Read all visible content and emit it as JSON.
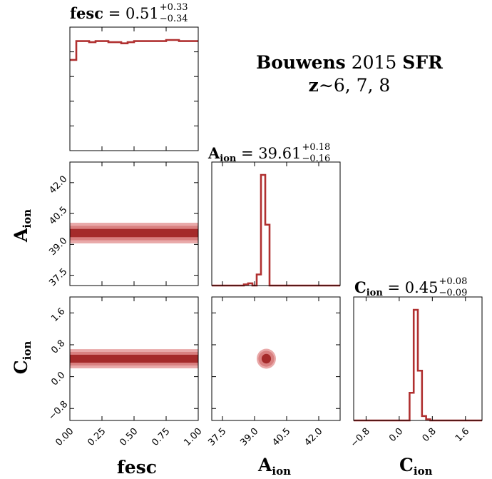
{
  "figure": {
    "title_line1_bold": "Bouwens",
    "title_line1_rest": " 2015 ",
    "title_line1_bold2": "SFR",
    "title_line2_bold": "z",
    "title_line2_rest": "∼6, 7, 8"
  },
  "headers": {
    "fesc": {
      "name": "fesc",
      "eq": " = 0.51",
      "plus": "+0.33",
      "minus": "−0.34"
    },
    "aion": {
      "name": "A",
      "sub": "ion",
      "eq": " = 39.61",
      "plus": "+0.18",
      "minus": "−0.16"
    },
    "cion": {
      "name": "C",
      "sub": "ion",
      "eq": " = 0.45",
      "plus": "+0.08",
      "minus": "−0.09"
    }
  },
  "labels": {
    "x_fesc": "fesc",
    "x_aion_main": "A",
    "x_aion_sub": "ion",
    "x_cion_main": "C",
    "x_cion_sub": "ion",
    "y_aion_main": "A",
    "y_aion_sub": "ion",
    "y_cion_main": "C",
    "y_cion_sub": "ion"
  },
  "colors": {
    "line": "#b03030",
    "fill_dark": "#a52a2a",
    "fill_light": "#e9a9a9",
    "fill_mid": "#d98080"
  },
  "chart_data": {
    "type": "corner",
    "parameters": [
      "fesc",
      "A_ion",
      "C_ion"
    ],
    "axes": {
      "fesc": {
        "range": [
          0.0,
          1.0
        ],
        "ticks": [
          "0.00",
          "0.25",
          "0.50",
          "0.75",
          "1.00"
        ],
        "tick_values": [
          0,
          0.25,
          0.5,
          0.75,
          1.0
        ]
      },
      "A_ion": {
        "range": [
          37.0,
          43.0
        ],
        "ticks": [
          "37.5",
          "39.0",
          "40.5",
          "42.0"
        ],
        "tick_values": [
          37.5,
          39.0,
          40.5,
          42.0
        ]
      },
      "C_ion": {
        "range": [
          -1.1,
          2.0
        ],
        "ticks": [
          "−0.8",
          "0.0",
          "0.8",
          "1.6"
        ],
        "tick_values": [
          -0.8,
          0.0,
          0.8,
          1.6
        ]
      }
    },
    "histograms": {
      "fesc": {
        "bin_edges": [
          0.0,
          0.05,
          0.1,
          0.15,
          0.2,
          0.25,
          0.3,
          0.35,
          0.4,
          0.45,
          0.5,
          0.55,
          0.6,
          0.65,
          0.7,
          0.75,
          0.8,
          0.85,
          0.9,
          0.95,
          1.0
        ],
        "counts": [
          0.82,
          0.99,
          0.99,
          0.98,
          0.99,
          0.99,
          0.98,
          0.98,
          0.97,
          0.98,
          0.99,
          0.99,
          0.99,
          0.99,
          0.99,
          1.0,
          1.0,
          0.99,
          0.99,
          0.99
        ]
      },
      "A_ion": {
        "bin_edges": [
          37.0,
          38.5,
          38.7,
          38.9,
          39.1,
          39.3,
          39.5,
          39.7,
          39.9,
          43.0
        ],
        "counts": [
          0.0,
          0.01,
          0.02,
          0.0,
          0.1,
          1.0,
          0.55,
          0.0,
          0.0
        ]
      },
      "C_ion": {
        "bin_edges": [
          -1.1,
          0.15,
          0.25,
          0.35,
          0.45,
          0.55,
          0.65,
          0.75,
          2.0
        ],
        "counts": [
          0.0,
          0.0,
          0.25,
          1.0,
          0.45,
          0.04,
          0.01,
          0.0
        ]
      }
    },
    "contours_2d": {
      "aion_vs_fesc": {
        "center_y": 39.55,
        "inner_halfwidth": 0.2,
        "mid_halfwidth": 0.35,
        "outer_halfwidth": 0.5,
        "x_extent": [
          0.0,
          1.0
        ]
      },
      "cion_vs_fesc": {
        "center_y": 0.45,
        "inner_halfwidth": 0.1,
        "mid_halfwidth": 0.17,
        "outer_halfwidth": 0.24,
        "x_extent": [
          0.0,
          1.0
        ]
      },
      "cion_vs_aion": {
        "center_x": 39.55,
        "center_y": 0.45,
        "inner_rx": 0.22,
        "inner_ry": 0.12,
        "mid_rx": 0.37,
        "mid_ry": 0.2,
        "outer_rx": 0.45,
        "outer_ry": 0.25
      }
    }
  }
}
